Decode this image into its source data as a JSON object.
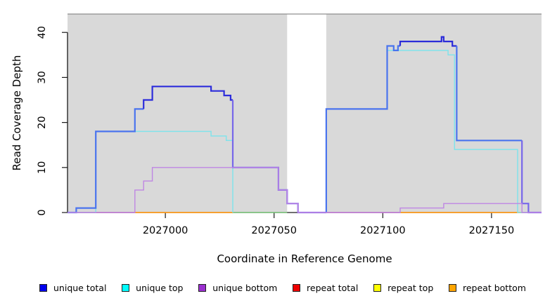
{
  "figure": {
    "x_axis": {
      "label": "Coordinate in Reference Genome",
      "ticks": [
        2027000,
        2027050,
        2027100,
        2027150
      ],
      "range": [
        2026955,
        2027173
      ]
    },
    "y_axis": {
      "label": "Read Coverage Depth",
      "ticks": [
        0,
        10,
        20,
        30,
        40
      ],
      "range": [
        0,
        44.1
      ]
    },
    "plot_bg": "#D9D9D9",
    "top_border_color": "#8F8F8F",
    "axis_color": "#1A1A1A",
    "gap_region": {
      "from": 2027056,
      "to": 2027074
    }
  },
  "chart_data": {
    "type": "line",
    "style": "step-coverage",
    "title": "",
    "xlabel": "Coordinate in Reference Genome",
    "ylabel": "Read Coverage Depth",
    "xlim": [
      2026955,
      2027173
    ],
    "ylim": [
      0,
      44.1
    ],
    "grid": false,
    "legend_position": "bottom",
    "series": [
      {
        "name": "unique total",
        "render_color": "#2D2DDB",
        "width": 2.2,
        "paths": [
          [
            [
              2026955,
              0
            ],
            [
              2026959,
              1
            ],
            [
              2026968,
              18
            ],
            [
              2026986,
              23
            ],
            [
              2026990,
              25
            ],
            [
              2026994,
              28
            ],
            [
              2027021,
              27
            ],
            [
              2027027,
              26
            ],
            [
              2027030,
              25
            ],
            [
              2027031,
              10
            ],
            [
              2027052,
              5
            ],
            [
              2027056,
              2
            ],
            [
              2027061,
              0
            ],
            [
              2027074,
              23
            ],
            [
              2027102,
              37
            ],
            [
              2027105,
              36
            ],
            [
              2027107,
              37
            ],
            [
              2027108,
              38
            ],
            [
              2027127,
              39
            ],
            [
              2027128,
              38
            ],
            [
              2027132,
              37
            ],
            [
              2027134,
              16
            ],
            [
              2027164,
              2
            ],
            [
              2027167,
              0
            ]
          ]
        ],
        "end": 2027173,
        "color_ranges": [
          {
            "from": 2026955,
            "to": 2026990,
            "color": "#4A74EE"
          },
          {
            "from": 2026990,
            "to": 2027031,
            "color": "#2D2DDB"
          },
          {
            "from": 2027031,
            "to": 2027074,
            "color": "#7767EA"
          },
          {
            "from": 2027074,
            "to": 2027108,
            "color": "#4A74EE"
          },
          {
            "from": 2027108,
            "to": 2027134,
            "color": "#2B2BD9"
          },
          {
            "from": 2027134,
            "to": 2027164,
            "color": "#4A74EE"
          },
          {
            "from": 2027164,
            "to": 2027173,
            "color": "#7767EA"
          }
        ]
      },
      {
        "name": "unique top",
        "render_color": "#82E3EA",
        "width": 1.5,
        "paths": [
          [
            [
              2026955,
              0
            ],
            [
              2026968,
              18
            ],
            [
              2027021,
              17
            ],
            [
              2027028,
              16
            ],
            [
              2027031,
              0
            ]
          ],
          [
            [
              2027074,
              23
            ],
            [
              2027102,
              36
            ],
            [
              2027130,
              35
            ],
            [
              2027133,
              14
            ],
            [
              2027162,
              0
            ]
          ]
        ],
        "ends": [
          2027031,
          2027167
        ]
      },
      {
        "name": "unique bottom",
        "render_color": "#BF86E3",
        "width": 1.4,
        "paths": [
          [
            [
              2026955,
              0
            ],
            [
              2026986,
              5
            ],
            [
              2026990,
              7
            ],
            [
              2026994,
              10
            ],
            [
              2027052,
              5
            ],
            [
              2027056,
              2
            ],
            [
              2027061,
              0
            ],
            [
              2027108,
              1
            ],
            [
              2027128,
              2
            ],
            [
              2027164,
              0
            ]
          ]
        ],
        "end": 2027173
      },
      {
        "name": "repeat total",
        "render_color": "#D2527E",
        "width": 1.5,
        "paths": [
          [
            [
              2026955,
              0
            ]
          ],
          [
            [
              2027074,
              0
            ]
          ]
        ],
        "ends": [
          2026986,
          2027108
        ]
      },
      {
        "name": "repeat top",
        "render_color": "#7CC97C",
        "width": 1.5,
        "paths": [
          [
            [
              2027031,
              0
            ]
          ]
        ],
        "ends": [
          2027056
        ]
      },
      {
        "name": "repeat bottom",
        "render_color": "#FF9D1E",
        "width": 1.8,
        "paths": [
          [
            [
              2026986,
              0
            ]
          ],
          [
            [
              2027108,
              0
            ]
          ]
        ],
        "ends": [
          2027031,
          2027164
        ]
      }
    ]
  },
  "legend": {
    "items": [
      {
        "label": "unique total",
        "color": "#0000EE"
      },
      {
        "label": "unique top",
        "color": "#00FFFF"
      },
      {
        "label": "unique bottom",
        "color": "#9B30D0"
      },
      {
        "label": "repeat total",
        "color": "#EE0000"
      },
      {
        "label": "repeat top",
        "color": "#FFFF00"
      },
      {
        "label": "repeat bottom",
        "color": "#FFA500"
      }
    ]
  }
}
